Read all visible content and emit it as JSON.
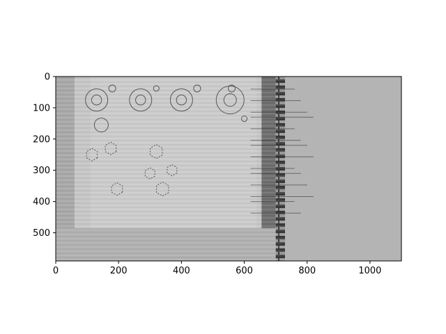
{
  "chart_data": {
    "type": "image",
    "title": "",
    "xlabel": "",
    "ylabel": "",
    "xlim": [
      0,
      1100
    ],
    "ylim": [
      590,
      0
    ],
    "xticks": [
      0,
      200,
      400,
      600,
      800,
      1000
    ],
    "yticks": [
      0,
      100,
      200,
      300,
      400,
      500
    ],
    "colormap": "gray",
    "grid": false,
    "image_regions": [
      {
        "name": "left-edge-band",
        "x": [
          0,
          60
        ],
        "y": [
          0,
          590
        ],
        "shade": "#a8a8a8"
      },
      {
        "name": "scan-sheet",
        "x": [
          60,
          660
        ],
        "y": [
          0,
          485
        ],
        "shade": "#c6c6c6"
      },
      {
        "name": "lower-strip",
        "x": [
          0,
          700
        ],
        "y": [
          485,
          590
        ],
        "shade": "#b0b0b0"
      },
      {
        "name": "dark-edge",
        "x": [
          655,
          700
        ],
        "y": [
          0,
          485
        ],
        "shade": "#6e6e6e"
      },
      {
        "name": "film-perforations",
        "x": [
          700,
          730
        ],
        "y": [
          0,
          590
        ],
        "shade": "#3a3a3a"
      },
      {
        "name": "flat-gray-region",
        "x": [
          730,
          1100
        ],
        "y": [
          0,
          590
        ],
        "shade": "#b4b4b4"
      }
    ]
  },
  "colors": {
    "axis": "#000000",
    "background": "#ffffff",
    "flat_gray": "#b4b4b4",
    "sheet": "#c6c6c6",
    "ink": "#555555"
  }
}
